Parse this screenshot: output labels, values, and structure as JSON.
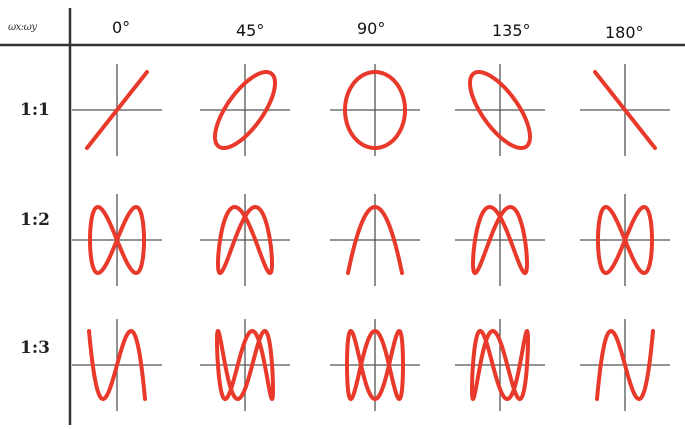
{
  "corner_label": "ωx:ωy",
  "phase_headers": [
    "0°",
    "45°",
    "90°",
    "135°",
    "180°"
  ],
  "phases_deg": [
    0,
    45,
    90,
    135,
    180
  ],
  "ratio_rows": [
    {
      "label": "1:1",
      "ratio": 1
    },
    {
      "label": "1:2",
      "ratio": 2
    },
    {
      "label": "1:3",
      "ratio": 3
    }
  ],
  "colors": {
    "curve": "#e8392a",
    "axis": "#555555",
    "grid": "#333333",
    "text": "#111111"
  }
}
